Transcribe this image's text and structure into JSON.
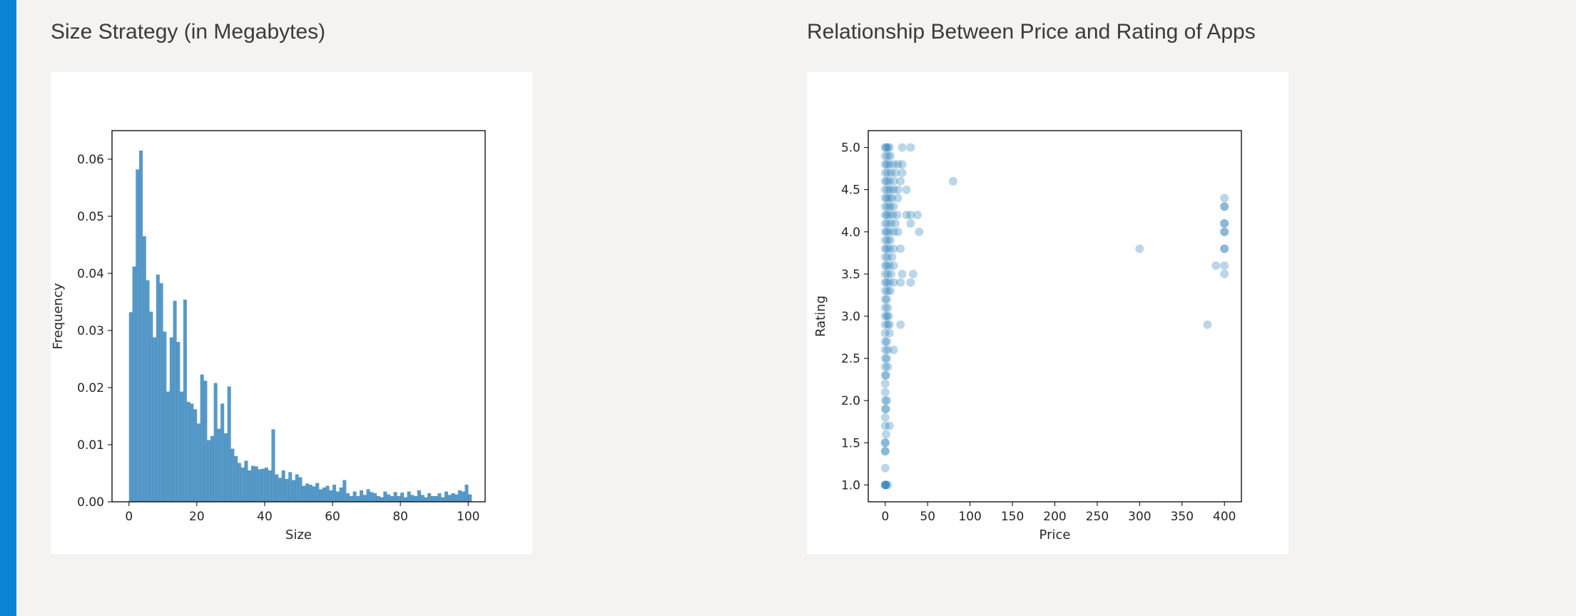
{
  "panels": {
    "left": {
      "title": "Size Strategy (in Megabytes)"
    },
    "right": {
      "title": "Relationship Between Price and Rating of Apps"
    }
  },
  "colors": {
    "accent": "#0a83d4",
    "series": "#1f77b4",
    "background": "#f4f3f2",
    "card": "#ffffff"
  },
  "chart_data": [
    {
      "type": "bar",
      "xlabel": "Size",
      "ylabel": "Frequency",
      "xlim": [
        -5,
        105
      ],
      "ylim": [
        0,
        0.065
      ],
      "xticks": [
        0,
        20,
        40,
        60,
        80,
        100
      ],
      "xtick_labels": [
        "0",
        "20",
        "40",
        "60",
        "80",
        "100"
      ],
      "yticks": [
        0.0,
        0.01,
        0.02,
        0.03,
        0.04,
        0.05,
        0.06
      ],
      "ytick_labels": [
        "0.00",
        "0.01",
        "0.02",
        "0.03",
        "0.04",
        "0.05",
        "0.06"
      ],
      "grid": false,
      "series_color": "#1f77b4",
      "bin_start": 0,
      "bin_width": 1,
      "values": [
        0.0332,
        0.0412,
        0.0582,
        0.0615,
        0.0465,
        0.0388,
        0.0333,
        0.0288,
        0.0398,
        0.0383,
        0.0298,
        0.0193,
        0.0288,
        0.0352,
        0.028,
        0.0193,
        0.0354,
        0.0175,
        0.0172,
        0.0162,
        0.0137,
        0.0223,
        0.0212,
        0.0108,
        0.0115,
        0.0208,
        0.0128,
        0.0172,
        0.012,
        0.0202,
        0.0093,
        0.008,
        0.0068,
        0.006,
        0.0072,
        0.0055,
        0.0063,
        0.0062,
        0.0057,
        0.0058,
        0.006,
        0.0055,
        0.0127,
        0.0048,
        0.0042,
        0.0055,
        0.004,
        0.0052,
        0.0038,
        0.0048,
        0.0043,
        0.0028,
        0.0032,
        0.003,
        0.0027,
        0.0033,
        0.0022,
        0.0025,
        0.0028,
        0.002,
        0.003,
        0.0018,
        0.0025,
        0.0038,
        0.0015,
        0.001,
        0.0018,
        0.001,
        0.002,
        0.0012,
        0.0022,
        0.0017,
        0.0015,
        0.001,
        0.0008,
        0.0018,
        0.0013,
        0.001,
        0.0017,
        0.001,
        0.0016,
        0.0008,
        0.0018,
        0.0012,
        0.001,
        0.002,
        0.0012,
        0.0008,
        0.0015,
        0.001,
        0.001,
        0.0015,
        0.0008,
        0.0018,
        0.0012,
        0.0015,
        0.0013,
        0.002,
        0.0018,
        0.003,
        0.0013
      ]
    },
    {
      "type": "scatter",
      "xlabel": "Price",
      "ylabel": "Rating",
      "xlim": [
        -20,
        420
      ],
      "ylim": [
        0.8,
        5.2
      ],
      "xticks": [
        0,
        50,
        100,
        150,
        200,
        250,
        300,
        350,
        400
      ],
      "xtick_labels": [
        "0",
        "50",
        "100",
        "150",
        "200",
        "250",
        "300",
        "350",
        "400"
      ],
      "yticks": [
        1.0,
        1.5,
        2.0,
        2.5,
        3.0,
        3.5,
        4.0,
        4.5,
        5.0
      ],
      "ytick_labels": [
        "1.0",
        "1.5",
        "2.0",
        "2.5",
        "3.0",
        "3.5",
        "4.0",
        "4.5",
        "5.0"
      ],
      "grid": false,
      "series_color": "#1f77b4",
      "alpha": 0.3,
      "points": [
        [
          0,
          1.0
        ],
        [
          0,
          1.0
        ],
        [
          1,
          1.0
        ],
        [
          3,
          1.0
        ],
        [
          0,
          1.0
        ],
        [
          0,
          1.2
        ],
        [
          0,
          1.4
        ],
        [
          0,
          1.4
        ],
        [
          0,
          1.5
        ],
        [
          0,
          1.5
        ],
        [
          1,
          1.6
        ],
        [
          0,
          1.7
        ],
        [
          5,
          1.7
        ],
        [
          0,
          1.8
        ],
        [
          0,
          1.9
        ],
        [
          1,
          1.9
        ],
        [
          0,
          2.0
        ],
        [
          2,
          2.0
        ],
        [
          0,
          2.1
        ],
        [
          0,
          2.2
        ],
        [
          0,
          2.3
        ],
        [
          1,
          2.3
        ],
        [
          0,
          2.4
        ],
        [
          3,
          2.4
        ],
        [
          0,
          2.5
        ],
        [
          2,
          2.5
        ],
        [
          0,
          2.6
        ],
        [
          3,
          2.6
        ],
        [
          10,
          2.6
        ],
        [
          0,
          2.7
        ],
        [
          2,
          2.7
        ],
        [
          0,
          2.8
        ],
        [
          5,
          2.8
        ],
        [
          0,
          2.9
        ],
        [
          3,
          2.9
        ],
        [
          5,
          2.9
        ],
        [
          18,
          2.9
        ],
        [
          0,
          3.0
        ],
        [
          2,
          3.0
        ],
        [
          4,
          3.0
        ],
        [
          0,
          3.1
        ],
        [
          3,
          3.1
        ],
        [
          0,
          3.2
        ],
        [
          2,
          3.2
        ],
        [
          0,
          3.3
        ],
        [
          3,
          3.3
        ],
        [
          6,
          3.3
        ],
        [
          0,
          3.4
        ],
        [
          2,
          3.4
        ],
        [
          5,
          3.4
        ],
        [
          10,
          3.4
        ],
        [
          18,
          3.4
        ],
        [
          30,
          3.4
        ],
        [
          0,
          3.5
        ],
        [
          3,
          3.5
        ],
        [
          7,
          3.5
        ],
        [
          20,
          3.5
        ],
        [
          33,
          3.5
        ],
        [
          0,
          3.6
        ],
        [
          2,
          3.6
        ],
        [
          5,
          3.6
        ],
        [
          10,
          3.6
        ],
        [
          0,
          3.7
        ],
        [
          3,
          3.7
        ],
        [
          8,
          3.7
        ],
        [
          0,
          3.8
        ],
        [
          2,
          3.8
        ],
        [
          5,
          3.8
        ],
        [
          10,
          3.8
        ],
        [
          18,
          3.8
        ],
        [
          0,
          3.9
        ],
        [
          3,
          3.9
        ],
        [
          6,
          3.9
        ],
        [
          0,
          4.0
        ],
        [
          2,
          4.0
        ],
        [
          5,
          4.0
        ],
        [
          10,
          4.0
        ],
        [
          15,
          4.0
        ],
        [
          40,
          4.0
        ],
        [
          0,
          4.1
        ],
        [
          3,
          4.1
        ],
        [
          7,
          4.1
        ],
        [
          12,
          4.1
        ],
        [
          30,
          4.1
        ],
        [
          0,
          4.2
        ],
        [
          2,
          4.2
        ],
        [
          5,
          4.2
        ],
        [
          9,
          4.2
        ],
        [
          14,
          4.2
        ],
        [
          25,
          4.2
        ],
        [
          30,
          4.2
        ],
        [
          38,
          4.2
        ],
        [
          0,
          4.3
        ],
        [
          3,
          4.3
        ],
        [
          6,
          4.3
        ],
        [
          10,
          4.3
        ],
        [
          0,
          4.4
        ],
        [
          2,
          4.4
        ],
        [
          5,
          4.4
        ],
        [
          8,
          4.4
        ],
        [
          15,
          4.4
        ],
        [
          0,
          4.5
        ],
        [
          3,
          4.5
        ],
        [
          6,
          4.5
        ],
        [
          10,
          4.5
        ],
        [
          15,
          4.5
        ],
        [
          25,
          4.5
        ],
        [
          0,
          4.6
        ],
        [
          2,
          4.6
        ],
        [
          5,
          4.6
        ],
        [
          10,
          4.6
        ],
        [
          18,
          4.6
        ],
        [
          80,
          4.6
        ],
        [
          0,
          4.7
        ],
        [
          3,
          4.7
        ],
        [
          7,
          4.7
        ],
        [
          12,
          4.7
        ],
        [
          20,
          4.7
        ],
        [
          0,
          4.8
        ],
        [
          2,
          4.8
        ],
        [
          5,
          4.8
        ],
        [
          10,
          4.8
        ],
        [
          15,
          4.8
        ],
        [
          20,
          4.8
        ],
        [
          0,
          4.9
        ],
        [
          3,
          4.9
        ],
        [
          6,
          4.9
        ],
        [
          0,
          5.0
        ],
        [
          1,
          5.0
        ],
        [
          3,
          5.0
        ],
        [
          5,
          5.0
        ],
        [
          20,
          5.0
        ],
        [
          30,
          5.0
        ],
        [
          300,
          3.8
        ],
        [
          380,
          2.9
        ],
        [
          390,
          3.6
        ],
        [
          400,
          3.5
        ],
        [
          400,
          3.6
        ],
        [
          400,
          3.8
        ],
        [
          400,
          3.8
        ],
        [
          400,
          4.0
        ],
        [
          400,
          4.0
        ],
        [
          400,
          4.1
        ],
        [
          400,
          4.1
        ],
        [
          400,
          4.3
        ],
        [
          400,
          4.3
        ],
        [
          400,
          4.4
        ]
      ]
    }
  ]
}
